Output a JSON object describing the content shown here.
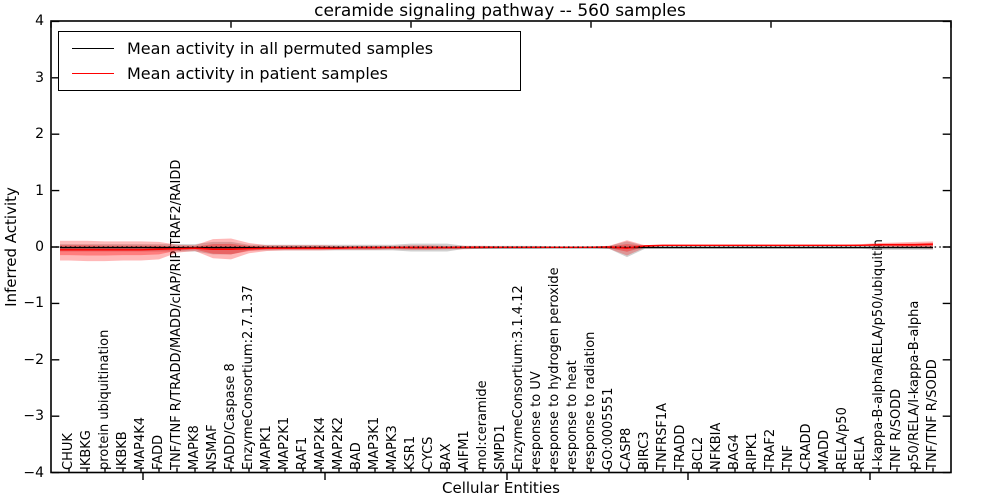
{
  "chart_data": {
    "type": "line",
    "title": "ceramide signaling pathway -- 560 samples",
    "xlabel": "Cellular Entities",
    "ylabel": "Inferred Activity",
    "ylim": [
      -4,
      4
    ],
    "ytick_labels": [
      "4",
      "3",
      "2",
      "1",
      "0",
      "−1",
      "−2",
      "−3",
      "−4"
    ],
    "ytick_values": [
      4,
      3,
      2,
      1,
      0,
      -1,
      -2,
      -3,
      -4
    ],
    "grid": false,
    "legend_position": "upper left",
    "zero_reference_line": 0,
    "colors": {
      "permuted_line": "#000000",
      "patient_line": "#ff0000",
      "patient_band": "#ff0000",
      "permuted_band": "#aaaaaa",
      "frame": "#000000"
    },
    "categories": [
      "CHUK",
      "IKBKG",
      "protein ubiquitination",
      "IKBKB",
      "MAP4K4",
      "FADD",
      "TNF/TNF R/TRADD/MADD/cIAP/RIP/TRAF2/RAIDD",
      "MAPK8",
      "NSMAF",
      "FADD/Caspase 8",
      "EnzymeConsortium:2.7.1.37",
      "MAPK1",
      "MAP2K1",
      "RAF1",
      "MAP2K4",
      "MAP2K2",
      "BAD",
      "MAP3K1",
      "MAPK3",
      "KSR1",
      "CYCS",
      "BAX",
      "AIFM1",
      "mol:ceramide",
      "SMPD1",
      "EnzymeConsortium:3.1.4.12",
      "response to UV",
      "response to hydrogen peroxide",
      "response to heat",
      "response to radiation",
      "GO:0005551",
      "CASP8",
      "BIRC3",
      "TNFRSF1A",
      "TRADD",
      "BCL2",
      "NFKBIA",
      "BAG4",
      "RIPK1",
      "TRAF2",
      "TNF",
      "CRADD",
      "MADD",
      "RELA/p50",
      "RELA",
      "I-kappa-B-alpha/RELA/p50/ubiquitin",
      "TNF R/SODD",
      "p50/RELA/I-kappa-B-alpha",
      "TNF/TNF R/SODD"
    ],
    "series": [
      {
        "name": "Mean activity in all permuted samples",
        "color": "#000000",
        "values": [
          -0.01,
          -0.01,
          -0.01,
          -0.01,
          -0.01,
          -0.01,
          -0.01,
          -0.01,
          -0.01,
          -0.01,
          -0.01,
          -0.01,
          -0.01,
          -0.01,
          -0.01,
          -0.01,
          -0.01,
          -0.01,
          -0.01,
          -0.01,
          -0.01,
          -0.01,
          -0.01,
          -0.01,
          -0.01,
          -0.01,
          -0.01,
          -0.01,
          -0.01,
          -0.01,
          -0.01,
          -0.01,
          -0.01,
          -0.01,
          -0.01,
          -0.01,
          -0.01,
          -0.01,
          -0.01,
          -0.01,
          -0.01,
          -0.01,
          -0.01,
          -0.01,
          -0.01,
          -0.01,
          -0.01,
          -0.01,
          -0.01
        ],
        "band_upper": [
          0.05,
          0.05,
          0.05,
          0.05,
          0.05,
          0.05,
          0.05,
          0.05,
          0.09,
          0.09,
          0.04,
          0.04,
          0.04,
          0.04,
          0.04,
          0.04,
          0.04,
          0.04,
          0.04,
          0.06,
          0.06,
          0.06,
          0.02,
          0.02,
          0.02,
          0.02,
          0.02,
          0.01,
          0.01,
          0.01,
          0.02,
          0.1,
          0.02,
          0.02,
          0.02,
          0.02,
          0.02,
          0.02,
          0.02,
          0.02,
          0.02,
          0.02,
          0.02,
          0.02,
          0.02,
          0.04,
          0.04,
          0.04,
          0.04
        ],
        "band_lower": [
          -0.08,
          -0.08,
          -0.08,
          -0.08,
          -0.08,
          -0.08,
          -0.08,
          -0.08,
          -0.13,
          -0.13,
          -0.06,
          -0.06,
          -0.06,
          -0.06,
          -0.06,
          -0.06,
          -0.06,
          -0.06,
          -0.06,
          -0.08,
          -0.08,
          -0.08,
          -0.03,
          -0.03,
          -0.03,
          -0.03,
          -0.03,
          -0.02,
          -0.02,
          -0.02,
          -0.03,
          -0.18,
          -0.03,
          -0.03,
          -0.03,
          -0.03,
          -0.03,
          -0.03,
          -0.03,
          -0.03,
          -0.03,
          -0.03,
          -0.03,
          -0.03,
          -0.03,
          -0.05,
          -0.05,
          -0.05,
          -0.05
        ]
      },
      {
        "name": "Mean activity in patient samples",
        "color": "#ff0000",
        "values": [
          -0.05,
          -0.05,
          -0.05,
          -0.05,
          -0.05,
          -0.04,
          -0.03,
          -0.02,
          -0.04,
          -0.04,
          -0.03,
          -0.02,
          -0.02,
          -0.02,
          -0.02,
          -0.02,
          -0.01,
          -0.01,
          -0.01,
          -0.01,
          -0.01,
          -0.01,
          -0.005,
          -0.005,
          -0.005,
          -0.005,
          -0.005,
          -0.005,
          -0.005,
          -0.005,
          0.0,
          -0.02,
          0.02,
          0.03,
          0.03,
          0.03,
          0.03,
          0.03,
          0.03,
          0.03,
          0.03,
          0.03,
          0.03,
          0.03,
          0.03,
          0.04,
          0.04,
          0.04,
          0.05
        ],
        "band_upper": [
          0.11,
          0.11,
          0.1,
          0.1,
          0.1,
          0.09,
          0.04,
          0.03,
          0.14,
          0.15,
          0.07,
          0.03,
          0.03,
          0.03,
          0.03,
          0.02,
          0.02,
          0.02,
          0.02,
          0.03,
          0.03,
          0.02,
          0.02,
          0.02,
          0.01,
          0.01,
          0.01,
          0.005,
          0.005,
          0.01,
          0.02,
          0.12,
          0.03,
          0.04,
          0.04,
          0.04,
          0.04,
          0.04,
          0.04,
          0.04,
          0.04,
          0.04,
          0.04,
          0.04,
          0.05,
          0.07,
          0.08,
          0.09,
          0.1
        ],
        "band_lower": [
          -0.24,
          -0.25,
          -0.25,
          -0.24,
          -0.24,
          -0.22,
          -0.1,
          -0.07,
          -0.2,
          -0.22,
          -0.11,
          -0.07,
          -0.06,
          -0.06,
          -0.06,
          -0.05,
          -0.05,
          -0.05,
          -0.04,
          -0.05,
          -0.05,
          -0.04,
          -0.04,
          -0.03,
          -0.02,
          -0.02,
          -0.01,
          -0.01,
          -0.01,
          -0.01,
          -0.03,
          -0.15,
          -0.01,
          0.02,
          0.02,
          0.02,
          0.02,
          0.02,
          0.02,
          0.02,
          0.02,
          0.02,
          0.02,
          0.02,
          0.02,
          0.01,
          0.0,
          -0.01,
          -0.03
        ]
      }
    ]
  }
}
